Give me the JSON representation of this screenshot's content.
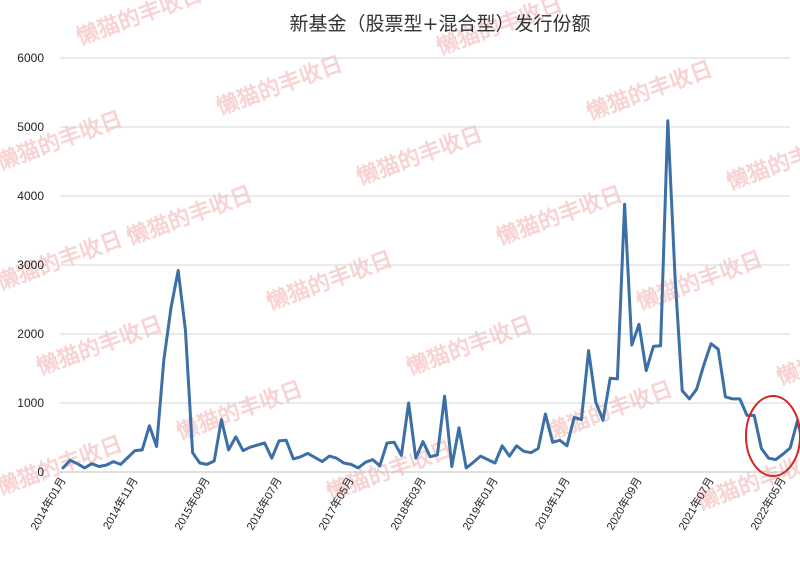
{
  "chart_data": {
    "type": "line",
    "title": "新基金（股票型+混合型）发行份额",
    "xlabel": "",
    "ylabel": "",
    "ylim": [
      0,
      6000
    ],
    "yticks": [
      0,
      1000,
      2000,
      3000,
      4000,
      5000,
      6000
    ],
    "grid": true,
    "legend": "none",
    "x_tick_labels": [
      "2014年01月",
      "2014年11月",
      "2015年09月",
      "2016年07月",
      "2017年05月",
      "2018年03月",
      "2019年01月",
      "2019年11月",
      "2020年09月",
      "2021年07月",
      "2022年05月"
    ],
    "x_tick_indices": [
      0,
      10,
      20,
      30,
      40,
      50,
      60,
      70,
      80,
      90,
      100
    ],
    "line_color": "#3b6fa6",
    "series": [
      {
        "values": [
          60,
          170,
          120,
          60,
          120,
          80,
          100,
          150,
          110,
          210,
          310,
          320,
          670,
          370,
          1620,
          2380,
          2920,
          2060,
          280,
          130,
          110,
          160,
          760,
          320,
          510,
          310,
          360,
          390,
          420,
          200,
          450,
          460,
          190,
          220,
          270,
          210,
          150,
          230,
          200,
          130,
          110,
          60,
          140,
          180,
          90,
          420,
          430,
          240,
          1000,
          200,
          440,
          220,
          250,
          1100,
          80,
          640,
          60,
          140,
          230,
          180,
          130,
          380,
          230,
          380,
          300,
          280,
          340,
          840,
          430,
          460,
          380,
          790,
          760,
          1760,
          1010,
          750,
          1360,
          1350,
          3880,
          1840,
          2140,
          1470,
          1820,
          1830,
          5090,
          2840,
          1180,
          1060,
          1200,
          1550,
          1860,
          1780,
          1090,
          1060,
          1060,
          820,
          820,
          340,
          200,
          180,
          260,
          350,
          740,
          340
        ]
      }
    ],
    "annotation": "red circle highlighting latest months",
    "watermark": "懒猫的丰收日"
  }
}
